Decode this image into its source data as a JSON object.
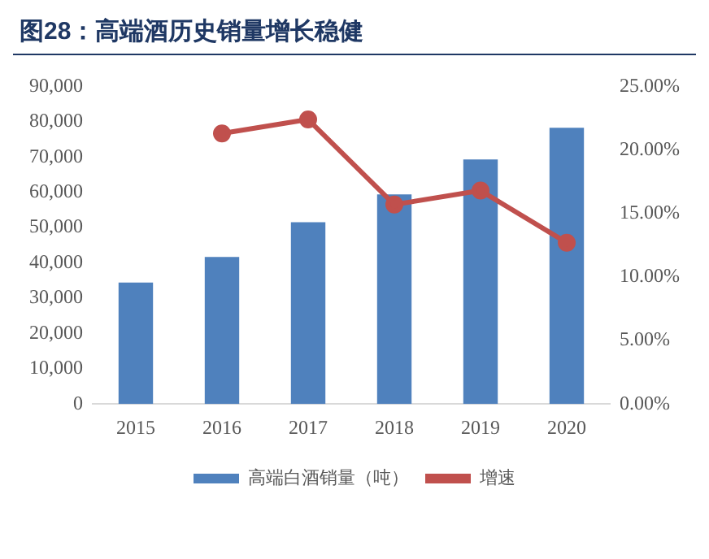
{
  "chart_data": {
    "type": "bar",
    "title": "图28：高端酒历史销量增长稳健",
    "categories": [
      "2015",
      "2016",
      "2017",
      "2018",
      "2019",
      "2020"
    ],
    "series": [
      {
        "name": "高端白酒销量（吨）",
        "color": "#4f81bd",
        "values": [
          34400,
          41700,
          51500,
          59400,
          69300,
          78300
        ]
      },
      {
        "name": "增速",
        "type": "line",
        "axis": "y2",
        "color": "#c0504d",
        "marker": "circle",
        "values": [
          null,
          21.3,
          22.4,
          15.7,
          16.8,
          12.7
        ]
      }
    ],
    "ylim": [
      0,
      90000
    ],
    "yticks": [
      {
        "value": 0,
        "label": "0"
      },
      {
        "value": 10000,
        "label": "10,000"
      },
      {
        "value": 20000,
        "label": "20,000"
      },
      {
        "value": 30000,
        "label": "30,000"
      },
      {
        "value": 40000,
        "label": "40,000"
      },
      {
        "value": 50000,
        "label": "50,000"
      },
      {
        "value": 60000,
        "label": "60,000"
      },
      {
        "value": 70000,
        "label": "70,000"
      },
      {
        "value": 80000,
        "label": "80,000"
      },
      {
        "value": 90000,
        "label": "90,000"
      }
    ],
    "y2lim": [
      0,
      25
    ],
    "y2ticks": [
      {
        "value": 0,
        "label": "0.00%"
      },
      {
        "value": 5,
        "label": "5.00%"
      },
      {
        "value": 10,
        "label": "10.00%"
      },
      {
        "value": 15,
        "label": "15.00%"
      },
      {
        "value": 20,
        "label": "20.00%"
      },
      {
        "value": 25,
        "label": "25.00%"
      }
    ],
    "grid": false,
    "legend": "bottom"
  }
}
